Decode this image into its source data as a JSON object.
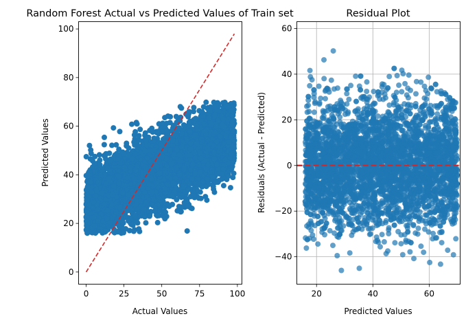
{
  "chart_data": [
    {
      "type": "scatter",
      "title": "Random Forest Actual vs Predicted Values of Train set",
      "xlabel": "Actual Values",
      "ylabel": "Predicted Values",
      "xlim": [
        -5,
        103
      ],
      "ylim": [
        -5,
        103
      ],
      "xticks": [
        0,
        25,
        50,
        75,
        100
      ],
      "yticks": [
        0,
        20,
        40,
        60,
        80,
        100
      ],
      "grid": false,
      "marker_color": "#1f77b4",
      "reference_line": {
        "style": "dashed",
        "color": "#d62728",
        "from": [
          0,
          0
        ],
        "to": [
          98,
          98
        ]
      },
      "points_summary": {
        "x_range": [
          0,
          98
        ],
        "y_range": [
          16,
          70
        ],
        "description": "dense cloud of points, y rises with x from ~16-45 at x=0 to ~45-70 at x=98"
      }
    },
    {
      "type": "scatter",
      "title": "Residual Plot",
      "xlabel": "Predicted Values",
      "ylabel": "Residuals (Actual - Predicted)",
      "xlim": [
        13,
        71
      ],
      "ylim": [
        -52,
        63
      ],
      "xticks": [
        20,
        40,
        60
      ],
      "yticks": [
        -40,
        -20,
        0,
        20,
        40,
        60
      ],
      "grid": true,
      "marker_color": "#1f77b4",
      "marker_alpha": 0.7,
      "reference_line": {
        "style": "dashed",
        "color": "#d62728",
        "y": 0
      },
      "points_summary": {
        "x_range": [
          16,
          70
        ],
        "y_range": [
          -46,
          58
        ],
        "description": "dense band of residuals roughly symmetric about 0, upper bound falling with predicted value"
      }
    }
  ]
}
